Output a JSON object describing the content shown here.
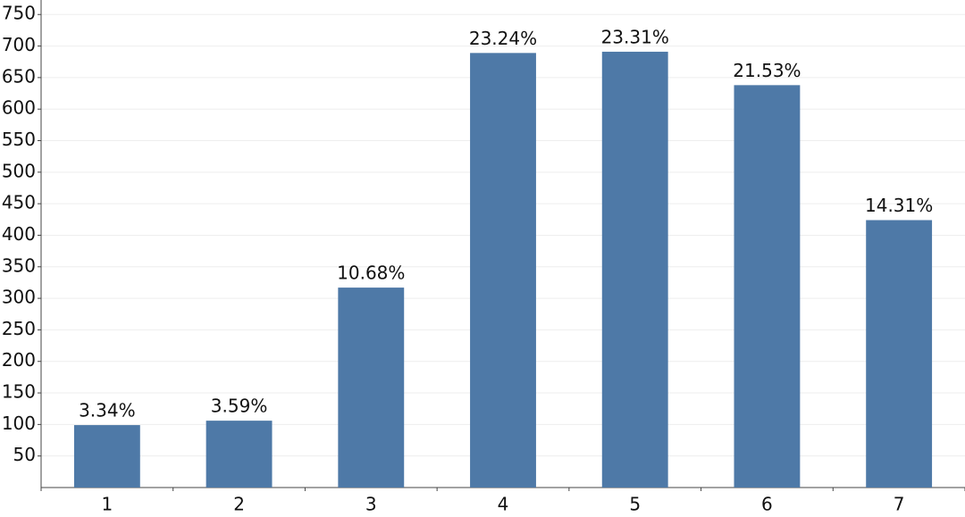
{
  "chart_data": {
    "type": "bar",
    "categories": [
      "1",
      "2",
      "3",
      "4",
      "5",
      "6",
      "7"
    ],
    "values": [
      99,
      106,
      317,
      689,
      691,
      638,
      424
    ],
    "value_labels": [
      "3.34%",
      "3.59%",
      "10.68%",
      "23.24%",
      "23.31%",
      "21.53%",
      "14.31%"
    ],
    "color": "#4e79a7",
    "ylim": [
      0,
      773
    ],
    "yticks": [
      50,
      100,
      150,
      200,
      250,
      300,
      350,
      400,
      450,
      500,
      550,
      600,
      650,
      700,
      750
    ],
    "grid": true
  }
}
